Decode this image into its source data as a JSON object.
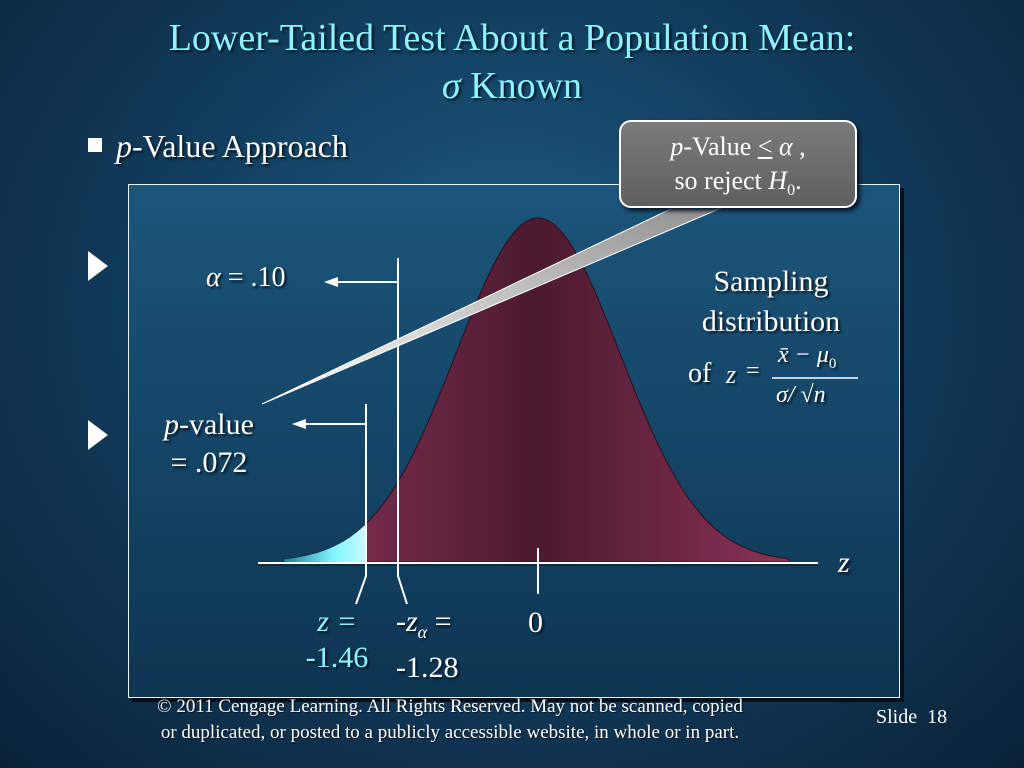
{
  "title": {
    "line1": "Lower-Tailed Test About a Population Mean:",
    "sigma_symbol": "σ",
    "line2_text": "Known"
  },
  "bullet": {
    "p_letter": "p",
    "text": "-Value Approach"
  },
  "callout": {
    "p_letter": "p",
    "line1_text": "-Value ",
    "le_symbol": "<",
    "alpha_symbol": "α",
    "comma": " ,",
    "line2_text": "so reject ",
    "h_letter": "H",
    "h_sub": "0",
    "period": "."
  },
  "alpha_label": {
    "alpha_symbol": "α",
    "text": " = .10"
  },
  "pvalue_label": {
    "p_letter": "p",
    "line1_text": "-value",
    "line2_text": "= .072"
  },
  "sampling_label": {
    "line1": "Sampling",
    "line2": "distribution",
    "of_text": "of",
    "z_letter": "z",
    "equals": "=",
    "numerator": "x̄ − μ",
    "numerator_sub": "0",
    "denominator": "σ/ √n"
  },
  "axis": {
    "z_label": "z",
    "zero_label": "0"
  },
  "z_value_label": {
    "line1": "z =",
    "line2": "-1.46"
  },
  "z_alpha_label": {
    "prefix": "-z",
    "alpha_sub": "α",
    "equals": " =",
    "line2": "-1.28"
  },
  "footer": {
    "line1": "© 2011  Cengage Learning.  All Rights Reserved.  May not be scanned, copied",
    "line2": "or duplicated, or posted to a publicly accessible website, in whole or in part."
  },
  "slide": {
    "label": "Slide",
    "number": "18"
  },
  "colors": {
    "title": "#8ff3ff",
    "curve_fill": "#7a2a4e",
    "tail_fill": "#66f0ff",
    "callout_bg": "#6e6e6e"
  }
}
